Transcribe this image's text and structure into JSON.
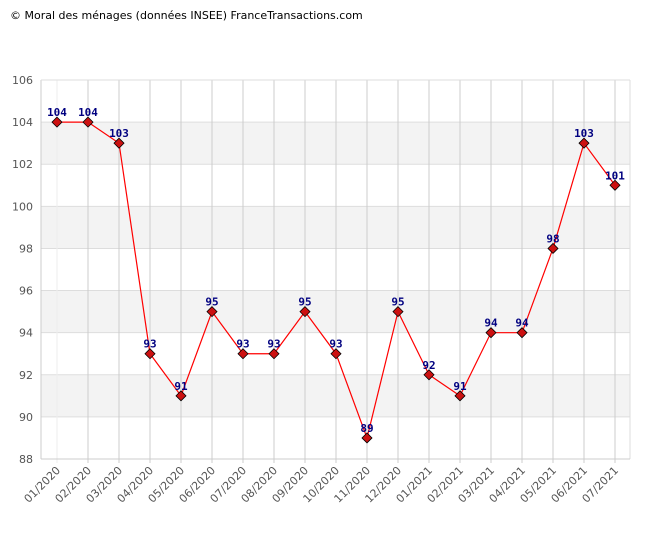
{
  "chart_data": {
    "type": "line",
    "title": "© Moral des ménages (données INSEE) FranceTransactions.com",
    "xlabel": "",
    "ylabel": "",
    "ylim": [
      88,
      106
    ],
    "yticks": [
      "88",
      "90",
      "92",
      "94",
      "96",
      "98",
      "100",
      "102",
      "104",
      "106"
    ],
    "categories": [
      "01/2020",
      "02/2020",
      "03/2020",
      "04/2020",
      "05/2020",
      "06/2020",
      "07/2020",
      "08/2020",
      "09/2020",
      "10/2020",
      "11/2020",
      "12/2020",
      "01/2021",
      "02/2021",
      "03/2021",
      "04/2021",
      "05/2021",
      "06/2021",
      "07/2021"
    ],
    "series": [
      {
        "name": "Moral des ménages",
        "values": [
          104,
          104,
          103,
          93,
          91,
          95,
          93,
          93,
          95,
          93,
          89,
          95,
          92,
          91,
          94,
          94,
          98,
          103,
          101
        ]
      }
    ],
    "grid": true,
    "line_color": "#ff0000",
    "marker_color": "#cc1111",
    "label_color": "#000080",
    "band_color": "#f3f3f3"
  }
}
